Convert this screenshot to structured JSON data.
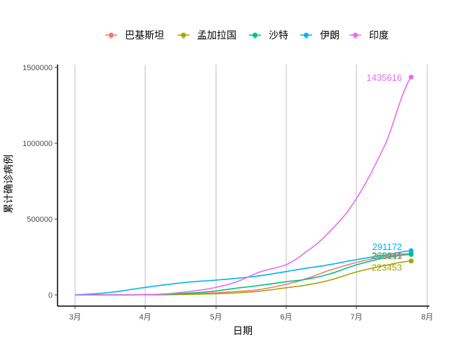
{
  "chart_data": {
    "type": "line",
    "title": "",
    "xlabel": "日期",
    "ylabel": "累计确诊病例",
    "x_ticks": [
      "3月",
      "4月",
      "5月",
      "6月",
      "7月",
      "8月"
    ],
    "y_ticks": [
      "0",
      "500000",
      "1000000",
      "1500000"
    ],
    "ylim": [
      0,
      1500000
    ],
    "grid": "vertical major lines only",
    "legend_position": "top",
    "x_note": "days since Mar 1; end date ~ Jul 25",
    "series": [
      {
        "name": "巴基斯坦",
        "color": "#F8766D",
        "end_label": "273113",
        "x": [
          0,
          15,
          30,
          40,
          50,
          60,
          70,
          80,
          92,
          100,
          110,
          122,
          135,
          146
        ],
        "values": [
          0,
          100,
          1500,
          4300,
          8000,
          13000,
          22000,
          35000,
          70000,
          105000,
          160000,
          213000,
          255000,
          273113
        ]
      },
      {
        "name": "孟加拉国",
        "color": "#A3A500",
        "end_label": "223453",
        "x": [
          0,
          15,
          30,
          40,
          50,
          60,
          70,
          80,
          92,
          100,
          110,
          122,
          135,
          146
        ],
        "values": [
          0,
          0,
          50,
          1000,
          3500,
          7000,
          13000,
          24000,
          47000,
          64000,
          95000,
          150000,
          195000,
          223453
        ]
      },
      {
        "name": "沙特",
        "color": "#00BF7D",
        "end_label": "266941",
        "x": [
          0,
          15,
          30,
          40,
          50,
          60,
          70,
          80,
          92,
          100,
          110,
          122,
          135,
          146
        ],
        "values": [
          0,
          150,
          1700,
          5000,
          12000,
          24000,
          44000,
          62000,
          87000,
          102000,
          136000,
          197000,
          245000,
          266941
        ]
      },
      {
        "name": "伊朗",
        "color": "#00B0F6",
        "end_label": "291172",
        "x": [
          0,
          15,
          30,
          40,
          50,
          60,
          70,
          80,
          92,
          100,
          110,
          122,
          135,
          146
        ],
        "values": [
          978,
          16000,
          47600,
          68000,
          85000,
          96000,
          109000,
          126000,
          154000,
          175000,
          198000,
          232000,
          264000,
          291172
        ]
      },
      {
        "name": "印度",
        "color": "#E76BF3",
        "end_label": "1435616",
        "x": [
          0,
          15,
          30,
          40,
          50,
          60,
          70,
          80,
          92,
          100,
          110,
          122,
          135,
          146
        ],
        "values": [
          3,
          100,
          1600,
          7500,
          23000,
          46000,
          85000,
          150000,
          200000,
          280000,
          410000,
          630000,
          1000000,
          1435616
        ]
      }
    ]
  }
}
